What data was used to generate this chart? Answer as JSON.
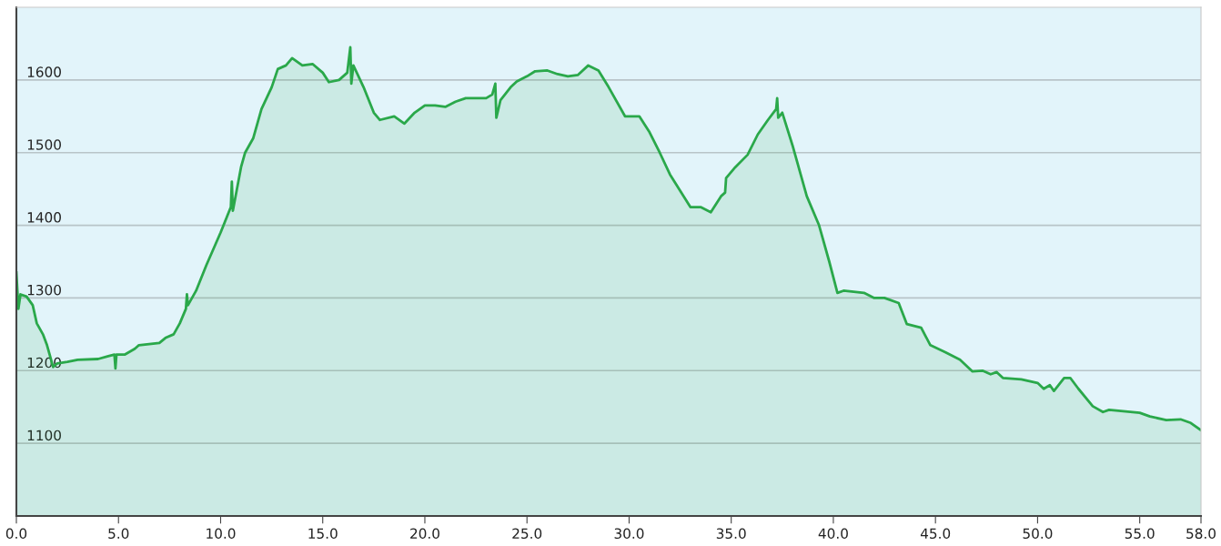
{
  "chart_data": {
    "type": "area",
    "x": [
      0,
      0.1,
      0.2,
      0.5,
      0.8,
      1.0,
      1.3,
      1.5,
      1.8,
      2.0,
      2.5,
      3.0,
      4.0,
      4.5,
      4.8,
      4.85,
      4.9,
      5.3,
      5.8,
      6.0,
      7.0,
      7.3,
      7.7,
      8.0,
      8.3,
      8.35,
      8.4,
      8.8,
      9.3,
      10.0,
      10.5,
      10.55,
      10.6,
      11.0,
      11.2,
      11.6,
      12.0,
      12.5,
      12.8,
      13.2,
      13.5,
      14.0,
      14.5,
      15.0,
      15.3,
      15.8,
      16.2,
      16.35,
      16.4,
      16.5,
      17.0,
      17.5,
      17.8,
      18.5,
      19.0,
      19.5,
      20.0,
      20.5,
      21.0,
      21.5,
      22.0,
      22.5,
      23.0,
      23.3,
      23.45,
      23.5,
      23.7,
      24.2,
      24.5,
      25.0,
      25.4,
      26.0,
      26.5,
      27.0,
      27.5,
      28.0,
      28.5,
      29.0,
      29.8,
      30.5,
      31.0,
      31.5,
      32.0,
      33.0,
      33.5,
      34.0,
      34.5,
      34.7,
      34.75,
      35.2,
      35.8,
      36.3,
      36.8,
      37.2,
      37.25,
      37.3,
      37.5,
      38.0,
      38.7,
      39.3,
      39.8,
      40.2,
      40.5,
      41.5,
      42.0,
      42.5,
      43.2,
      43.6,
      44.3,
      44.75,
      45.5,
      46.2,
      46.8,
      47.3,
      47.7,
      48.0,
      48.3,
      49.2,
      50.0,
      50.3,
      50.6,
      50.8,
      51.3,
      51.6,
      52.0,
      52.7,
      53.2,
      53.5,
      55.0,
      55.5,
      56.3,
      57.0,
      57.5,
      58.0
    ],
    "series": [
      {
        "color": "#2aa84a",
        "values": [
          1335,
          1285,
          1305,
          1302,
          1290,
          1265,
          1250,
          1235,
          1205,
          1210,
          1212,
          1215,
          1216,
          1220,
          1222,
          1203,
          1222,
          1222,
          1230,
          1235,
          1238,
          1245,
          1250,
          1265,
          1285,
          1305,
          1290,
          1310,
          1345,
          1390,
          1425,
          1460,
          1420,
          1480,
          1500,
          1520,
          1560,
          1590,
          1615,
          1620,
          1630,
          1620,
          1622,
          1610,
          1597,
          1600,
          1610,
          1645,
          1595,
          1620,
          1590,
          1555,
          1545,
          1550,
          1540,
          1555,
          1565,
          1565,
          1563,
          1570,
          1575,
          1575,
          1575,
          1580,
          1595,
          1548,
          1572,
          1590,
          1598,
          1605,
          1612,
          1613,
          1608,
          1605,
          1607,
          1620,
          1613,
          1590,
          1550,
          1550,
          1528,
          1500,
          1470,
          1425,
          1425,
          1418,
          1440,
          1445,
          1465,
          1480,
          1497,
          1525,
          1545,
          1560,
          1575,
          1548,
          1555,
          1510,
          1440,
          1400,
          1350,
          1307,
          1310,
          1307,
          1300,
          1300,
          1293,
          1264,
          1259,
          1235,
          1225,
          1215,
          1199,
          1200,
          1195,
          1198,
          1190,
          1188,
          1183,
          1175,
          1180,
          1172,
          1190,
          1190,
          1175,
          1151,
          1143,
          1146,
          1142,
          1137,
          1132,
          1133,
          1128,
          1118
        ]
      }
    ],
    "xlim": [
      0,
      58
    ],
    "ylim": [
      1000,
      1700
    ],
    "xticks": [
      {
        "value": 0,
        "label": "0.0"
      },
      {
        "value": 5,
        "label": "5.0"
      },
      {
        "value": 10,
        "label": "10.0"
      },
      {
        "value": 15,
        "label": "15.0"
      },
      {
        "value": 20,
        "label": "20.0"
      },
      {
        "value": 25,
        "label": "25.0"
      },
      {
        "value": 30,
        "label": "30.0"
      },
      {
        "value": 35,
        "label": "35.0"
      },
      {
        "value": 40,
        "label": "40.0"
      },
      {
        "value": 45,
        "label": "45.0"
      },
      {
        "value": 50,
        "label": "50.0"
      },
      {
        "value": 55,
        "label": "55.0"
      },
      {
        "value": 58,
        "label": "58.0"
      }
    ],
    "yticks": [
      1100,
      1200,
      1300,
      1400,
      1500,
      1600
    ],
    "grid": "y"
  }
}
